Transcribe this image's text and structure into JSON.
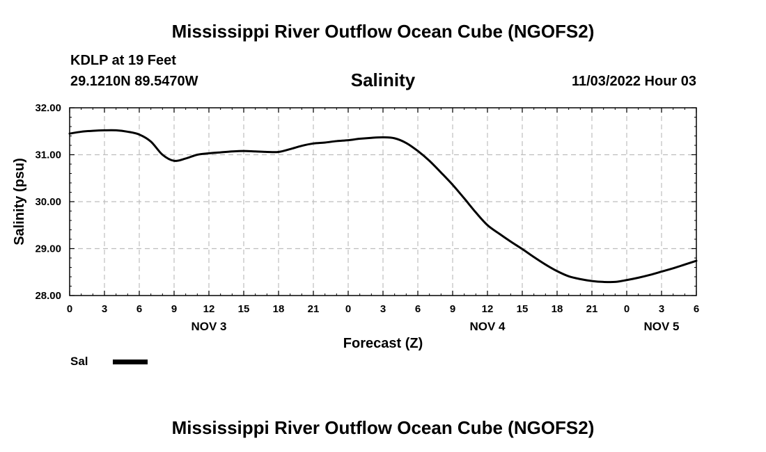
{
  "header": {
    "title": "Mississippi River Outflow Ocean Cube (NGOFS2)",
    "station_line": "KDLP at 19 Feet",
    "location_line": "29.1210N  89.5470W",
    "variable": "Salinity",
    "timestamp": "11/03/2022 Hour 03"
  },
  "footer": {
    "title": "Mississippi River Outflow Ocean Cube (NGOFS2)"
  },
  "chart_data": {
    "type": "line",
    "title": "Salinity",
    "xlabel": "Forecast (Z)",
    "ylabel": "Salinity (psu)",
    "xlim": [
      0,
      54
    ],
    "ylim": [
      28.0,
      32.0
    ],
    "grid": true,
    "x_ticks": [
      0,
      3,
      6,
      9,
      12,
      15,
      18,
      21,
      24,
      27,
      30,
      33,
      36,
      39,
      42,
      45,
      48,
      51,
      54
    ],
    "x_tick_labels": [
      "0",
      "3",
      "6",
      "9",
      "12",
      "15",
      "18",
      "21",
      "0",
      "3",
      "6",
      "9",
      "12",
      "15",
      "18",
      "21",
      "0",
      "3",
      "6"
    ],
    "y_ticks": [
      28.0,
      29.0,
      30.0,
      31.0,
      32.0
    ],
    "y_tick_labels": [
      "28.00",
      "29.00",
      "30.00",
      "31.00",
      "32.00"
    ],
    "day_labels": [
      {
        "x": 12,
        "label": "NOV 3"
      },
      {
        "x": 36,
        "label": "NOV 4"
      },
      {
        "x": 51,
        "label": "NOV 5"
      }
    ],
    "legend": {
      "position": "bottom-left",
      "entries": [
        {
          "name": "Sal",
          "color": "#000000"
        }
      ]
    },
    "series": [
      {
        "name": "Sal",
        "color": "#000000",
        "x": [
          0,
          1,
          2,
          3,
          4,
          5,
          6,
          7,
          8,
          9,
          10,
          11,
          12,
          13,
          14,
          15,
          16,
          17,
          18,
          19,
          20,
          21,
          22,
          23,
          24,
          25,
          26,
          27,
          28,
          29,
          30,
          31,
          32,
          33,
          34,
          35,
          36,
          37,
          38,
          39,
          40,
          41,
          42,
          43,
          44,
          45,
          46,
          47,
          48,
          49,
          50,
          51,
          52,
          53,
          54
        ],
        "values": [
          31.45,
          31.49,
          31.51,
          31.52,
          31.52,
          31.49,
          31.43,
          31.28,
          31.0,
          30.87,
          30.92,
          31.0,
          31.03,
          31.05,
          31.07,
          31.08,
          31.07,
          31.06,
          31.06,
          31.12,
          31.19,
          31.24,
          31.26,
          31.29,
          31.31,
          31.34,
          31.36,
          31.37,
          31.35,
          31.25,
          31.08,
          30.87,
          30.62,
          30.36,
          30.07,
          29.77,
          29.5,
          29.32,
          29.15,
          28.99,
          28.82,
          28.66,
          28.52,
          28.41,
          28.35,
          28.31,
          28.29,
          28.29,
          28.33,
          28.38,
          28.44,
          28.51,
          28.58,
          28.66,
          28.74
        ]
      }
    ]
  }
}
